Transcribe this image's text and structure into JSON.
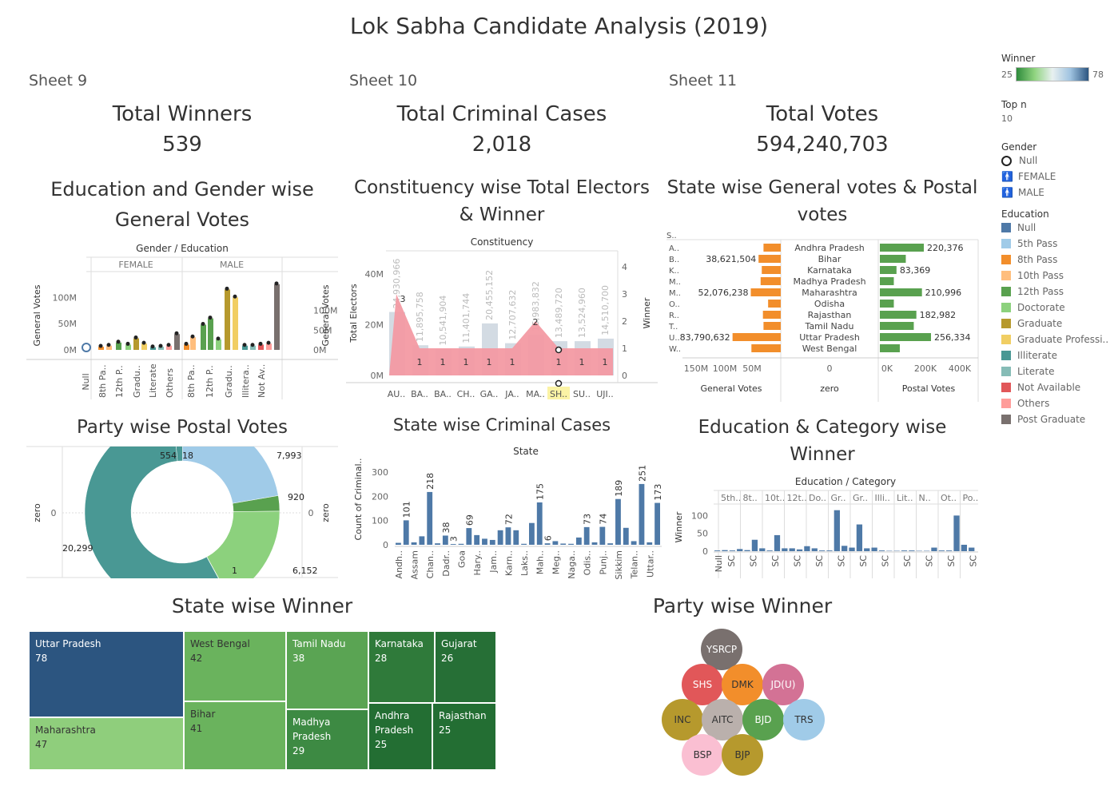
{
  "dashboard_title": "Lok Sabha Candidate Analysis (2019)",
  "sheets": [
    "Sheet 9",
    "Sheet 10",
    "Sheet 11"
  ],
  "kpis": [
    {
      "label": "Total Winners",
      "value": "539"
    },
    {
      "label": "Total Criminal Cases",
      "value": "2,018"
    },
    {
      "label": "Total Votes",
      "value": "594,240,703"
    }
  ],
  "charts": {
    "edu_gender_title_1": "Education and Gender wise",
    "edu_gender_title_2": "General Votes",
    "edu_gender_header": "Gender / Education",
    "edu_gender_female": "FEMALE",
    "edu_gender_male": "MALE",
    "edu_gender_yleft": "General Votes",
    "edu_gender_yright": "General Votes",
    "constituency_title_1": "Constituency wise Total Electors",
    "constituency_title_2": "& Winner",
    "constituency_header": "Constituency",
    "constituency_yleft": "Total Electors",
    "constituency_yright": "Winner",
    "state_votes_title_1": "State wise General votes & Postal",
    "state_votes_title_2": "votes",
    "state_votes_xl": "General Votes",
    "state_votes_xm": "zero",
    "state_votes_xr": "Postal Votes",
    "party_postal_title": "Party wise Postal Votes",
    "party_postal_yl": "zero",
    "party_postal_yr": "zero",
    "state_criminal_title": "State wise Criminal Cases",
    "state_criminal_header": "State",
    "state_criminal_y": "Count of Criminal..",
    "edu_cat_title_1": "Education & Category wise",
    "edu_cat_title_2": "Winner",
    "edu_cat_header": "Education / Category",
    "edu_cat_y": "Winner",
    "state_winner_title": "State wise Winner",
    "party_winner_title": "Party wise Winner"
  },
  "legend": {
    "winner_title": "Winner",
    "winner_min": "25",
    "winner_max": "78",
    "topn_title": "Top n",
    "topn_value": "10",
    "gender_title": "Gender",
    "gender_items": [
      "Null",
      "FEMALE",
      "MALE"
    ],
    "education_title": "Education",
    "education_items": [
      {
        "label": "Null",
        "color": "#4e79a7"
      },
      {
        "label": "5th Pass",
        "color": "#a0cbe8"
      },
      {
        "label": "8th Pass",
        "color": "#f28e2b"
      },
      {
        "label": "10th Pass",
        "color": "#ffbe7d"
      },
      {
        "label": "12th Pass",
        "color": "#59a14f"
      },
      {
        "label": "Doctorate",
        "color": "#8cd17d"
      },
      {
        "label": "Graduate",
        "color": "#b6992d"
      },
      {
        "label": "Graduate Professi..",
        "color": "#f1ce63"
      },
      {
        "label": "Illiterate",
        "color": "#499894"
      },
      {
        "label": "Literate",
        "color": "#86bcb6"
      },
      {
        "label": "Not Available",
        "color": "#e15759"
      },
      {
        "label": "Others",
        "color": "#ff9d9a"
      },
      {
        "label": "Post Graduate",
        "color": "#79706e"
      }
    ]
  },
  "chart_data": [
    {
      "type": "bar",
      "title": "Education and Gender wise General Votes",
      "ylabel": "General Votes",
      "y_ticks": [
        "0M",
        "50M",
        "100M"
      ],
      "ylim": [
        0,
        140
      ],
      "groups": [
        "FEMALE",
        "MALE"
      ],
      "group_prefix": "Null",
      "categories": [
        "8th Pa..",
        "12th P..",
        "Gradu..",
        "Literate",
        "Others",
        "8th Pa..",
        "12th P..",
        "Gradu..",
        "Illitera..",
        "Not Av.."
      ],
      "bars": [
        {
          "group": "FEMALE",
          "value": 6,
          "color": "#f28e2b"
        },
        {
          "group": "FEMALE",
          "value": 8,
          "color": "#ffbe7d"
        },
        {
          "group": "FEMALE",
          "value": 14,
          "color": "#59a14f"
        },
        {
          "group": "FEMALE",
          "value": 10,
          "color": "#8cd17d"
        },
        {
          "group": "FEMALE",
          "value": 22,
          "color": "#b6992d"
        },
        {
          "group": "FEMALE",
          "value": 12,
          "color": "#f1ce63"
        },
        {
          "group": "FEMALE",
          "value": 5,
          "color": "#499894"
        },
        {
          "group": "FEMALE",
          "value": 6,
          "color": "#86bcb6"
        },
        {
          "group": "FEMALE",
          "value": 8,
          "color": "#ff9d9a"
        },
        {
          "group": "FEMALE",
          "value": 30,
          "color": "#79706e"
        },
        {
          "group": "MALE",
          "value": 10,
          "color": "#f28e2b"
        },
        {
          "group": "MALE",
          "value": 24,
          "color": "#ffbe7d"
        },
        {
          "group": "MALE",
          "value": 48,
          "color": "#59a14f"
        },
        {
          "group": "MALE",
          "value": 60,
          "color": "#59a14f"
        },
        {
          "group": "MALE",
          "value": 20,
          "color": "#8cd17d"
        },
        {
          "group": "MALE",
          "value": 115,
          "color": "#b6992d"
        },
        {
          "group": "MALE",
          "value": 100,
          "color": "#f1ce63"
        },
        {
          "group": "MALE",
          "value": 8,
          "color": "#499894"
        },
        {
          "group": "MALE",
          "value": 8,
          "color": "#86bcb6"
        },
        {
          "group": "MALE",
          "value": 10,
          "color": "#e15759"
        },
        {
          "group": "MALE",
          "value": 12,
          "color": "#ff9d9a"
        },
        {
          "group": "MALE",
          "value": 125,
          "color": "#79706e"
        }
      ]
    },
    {
      "type": "bar",
      "title": "Constituency wise Total Electors & Winner",
      "ylabel": "Total Electors",
      "y2label": "Winner",
      "y_ticks": [
        "0M",
        "20M",
        "40M"
      ],
      "y2_ticks": [
        "0",
        "1",
        "2",
        "3",
        "4"
      ],
      "categories": [
        "AU..",
        "BA..",
        "BA..",
        "CH..",
        "GA..",
        "JA..",
        "MA..",
        "SH..",
        "SU..",
        "UJI.."
      ],
      "electors_labels": [
        "24,930,966",
        "11,895,758",
        "10,541,904",
        "11,401,744",
        "20,455,152",
        "12,707,632",
        "15,983,832",
        "13,489,720",
        "13,524,960",
        "14,510,700"
      ],
      "electors_millions": [
        25,
        11.9,
        10.5,
        11.4,
        20.5,
        12.7,
        16.0,
        13.5,
        13.5,
        14.5
      ],
      "winners": [
        3,
        1,
        1,
        1,
        1,
        1,
        2,
        1,
        1,
        1
      ],
      "highlight": "SH.."
    },
    {
      "type": "bar",
      "title": "State wise General votes & Postal votes",
      "states": [
        "Andhra Pradesh",
        "Bihar",
        "Karnataka",
        "Madhya Pradesh",
        "Maharashtra",
        "Odisha",
        "Rajasthan",
        "Tamil Nadu",
        "Uttar Pradesh",
        "West Bengal"
      ],
      "state_abbr": [
        "S..",
        "A..",
        "B..",
        "K..",
        "M..",
        "M..",
        "O..",
        "R..",
        "T..",
        "U..",
        "W.."
      ],
      "general_votes_millions": [
        30,
        38.6,
        33,
        35,
        52.1,
        22,
        31,
        30,
        83.8,
        51
      ],
      "general_labels": [
        "",
        "38,621,504",
        "",
        "",
        "52,076,238",
        "",
        "",
        "",
        "83,790,632",
        ""
      ],
      "postal_votes": [
        220376,
        130000,
        83369,
        70000,
        210996,
        70000,
        182982,
        170000,
        256334,
        100000
      ],
      "postal_labels": [
        "220,376",
        "",
        "83,369",
        "",
        "210,996",
        "",
        "182,982",
        "",
        "256,334",
        ""
      ],
      "x_left_ticks": [
        "150M",
        "100M",
        "50M"
      ],
      "x_mid_ticks": [
        "0"
      ],
      "x_right_ticks": [
        "0K",
        "200K",
        "400K"
      ]
    },
    {
      "type": "pie",
      "title": "Party wise Postal Votes",
      "slices": [
        {
          "value": 7993,
          "label": "7,993",
          "color": "#a0cbe8"
        },
        {
          "value": 920,
          "label": "920",
          "color": "#59a14f"
        },
        {
          "value": 6152,
          "label": "6,152",
          "color": "#8cd17d"
        },
        {
          "value": 1,
          "label": "1",
          "color": "#8cd17d"
        },
        {
          "value": 20299,
          "label": "20,299",
          "color": "#499894"
        },
        {
          "value": 554,
          "label": "554",
          "color": "#499894"
        },
        {
          "value": 18,
          "label": "18",
          "color": "#86bcb6"
        }
      ],
      "zero_label": "0"
    },
    {
      "type": "bar",
      "title": "State wise Criminal Cases",
      "ylabel": "Count of Criminal..",
      "y_ticks": [
        "0",
        "100",
        "200",
        "300"
      ],
      "ylim": [
        0,
        320
      ],
      "categories": [
        "Andh..",
        "Assam",
        "Chan..",
        "Dadr..",
        "Goa",
        "Hary..",
        "Jam..",
        "Karn..",
        "Laks..",
        "Mah..",
        "Meg..",
        "Naga..",
        "Odis..",
        "Punj..",
        "Sikkim",
        "Telan..",
        "Uttar.."
      ],
      "values": [
        8,
        101,
        10,
        35,
        218,
        6,
        38,
        3,
        4,
        69,
        40,
        25,
        20,
        60,
        72,
        60,
        4,
        90,
        175,
        6,
        15,
        5,
        4,
        30,
        73,
        10,
        74,
        6,
        189,
        70,
        15,
        251,
        10,
        173
      ],
      "labels": [
        "",
        "101",
        "",
        "",
        "218",
        "",
        "38",
        "3",
        "",
        "69",
        "",
        "",
        "",
        "",
        "72",
        "",
        "",
        "",
        "175",
        "6",
        "",
        "",
        "",
        "",
        "73",
        "",
        "74",
        "",
        "189",
        "",
        "",
        "251",
        "",
        "173"
      ]
    },
    {
      "type": "bar",
      "title": "Education & Category wise Winner",
      "ylabel": "Winner",
      "y_ticks": [
        "0",
        "50",
        "100"
      ],
      "ylim": [
        0,
        130
      ],
      "education_headers": [
        "5th..",
        "8t..",
        "10t..",
        "12t..",
        "Do..",
        "Gr..",
        "Gr..",
        "Illi..",
        "Lit..",
        "N..",
        "Ot..",
        "Po.."
      ],
      "category_labels": [
        "Null",
        "SC",
        "SC",
        "SC",
        "SC",
        "SC",
        "SC",
        "SC",
        "SC",
        "SC",
        "SC",
        "SC",
        "SC"
      ],
      "values": [
        2,
        3,
        2,
        6,
        3,
        32,
        8,
        2,
        45,
        8,
        8,
        5,
        14,
        8,
        2,
        2,
        115,
        15,
        10,
        75,
        8,
        10,
        2,
        1,
        1,
        2,
        2,
        1,
        1,
        10,
        2,
        2,
        100,
        18,
        10
      ]
    },
    {
      "type": "heatmap",
      "title": "State wise Winner",
      "cells": [
        {
          "state": "Uttar Pradesh",
          "value": 78
        },
        {
          "state": "Maharashtra",
          "value": 47
        },
        {
          "state": "West Bengal",
          "value": 42
        },
        {
          "state": "Bihar",
          "value": 41
        },
        {
          "state": "Tamil Nadu",
          "value": 38
        },
        {
          "state": "Madhya Pradesh",
          "value": 29
        },
        {
          "state": "Karnataka",
          "value": 28
        },
        {
          "state": "Andhra Pradesh",
          "value": 25
        },
        {
          "state": "Gujarat",
          "value": 26
        },
        {
          "state": "Rajasthan",
          "value": 25
        }
      ]
    },
    {
      "type": "scatter",
      "title": "Party wise Winner",
      "parties": [
        {
          "name": "YSRCP",
          "color": "#79706e"
        },
        {
          "name": "SHS",
          "color": "#e15759"
        },
        {
          "name": "DMK",
          "color": "#f28e2b"
        },
        {
          "name": "JD(U)",
          "color": "#d37295"
        },
        {
          "name": "INC",
          "color": "#b6992d"
        },
        {
          "name": "AITC",
          "color": "#bab0ac"
        },
        {
          "name": "BJD",
          "color": "#59a14f"
        },
        {
          "name": "TRS",
          "color": "#a0cbe8"
        },
        {
          "name": "BSP",
          "color": "#fabfd2"
        },
        {
          "name": "BJP",
          "color": "#b6992d"
        }
      ]
    }
  ],
  "treemap_labels": {
    "up": "Uttar Pradesh",
    "up_v": "78",
    "mh": "Maharashtra",
    "mh_v": "47",
    "wb": "West Bengal",
    "wb_v": "42",
    "br": "Bihar",
    "br_v": "41",
    "tn": "Tamil Nadu",
    "tn_v": "38",
    "mp1": "Madhya",
    "mp2": "Pradesh",
    "mp_v": "29",
    "ka": "Karnataka",
    "ka_v": "28",
    "ap1": "Andhra",
    "ap2": "Pradesh",
    "ap_v": "25",
    "gj": "Gujarat",
    "gj_v": "26",
    "rj": "Rajasthan",
    "rj_v": "25"
  }
}
